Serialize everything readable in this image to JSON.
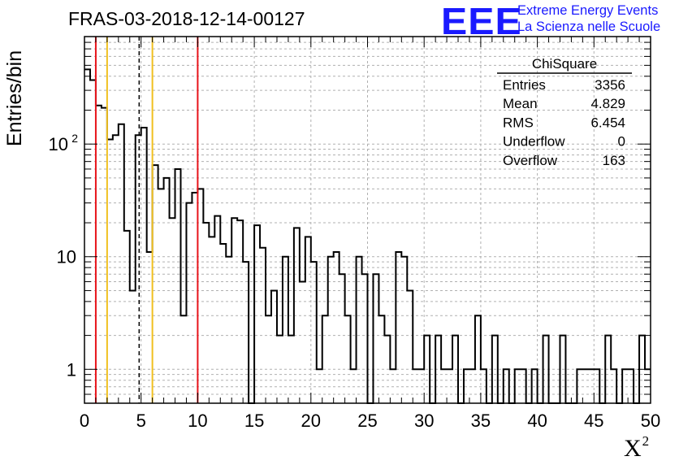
{
  "header": {
    "title": "FRAS-03-2018-12-14-00127",
    "logo_text": "EEE",
    "logo_line1": "Extreme Energy Events",
    "logo_line2": "La Scienza nelle Scuole"
  },
  "stats_box": {
    "name": "ChiSquare",
    "rows": [
      {
        "label": "Entries",
        "value": "3356"
      },
      {
        "label": "Mean",
        "value": "4.829"
      },
      {
        "label": "RMS",
        "value": "6.454"
      },
      {
        "label": "Underflow",
        "value": "0"
      },
      {
        "label": "Overflow",
        "value": "163"
      }
    ]
  },
  "chart_data": {
    "type": "bar",
    "title": "FRAS-03-2018-12-14-00127",
    "xlabel": "X",
    "xlabel_sup": "2",
    "ylabel": "Entries/bin",
    "xlim": [
      0,
      50
    ],
    "ylim": [
      0.5,
      900
    ],
    "yscale": "log",
    "grid": true,
    "legend": "top-right",
    "bin_width": 0.5,
    "x_ticks": [
      0,
      5,
      10,
      15,
      20,
      25,
      30,
      35,
      40,
      45,
      50
    ],
    "x_tick_labels": [
      "0",
      "5",
      "10",
      "15",
      "20",
      "25",
      "30",
      "35",
      "40",
      "45",
      "50"
    ],
    "y_tick_labels": [
      {
        "value": 1,
        "label": "1"
      },
      {
        "value": 10,
        "label": "10"
      },
      {
        "value": 100,
        "label": "10",
        "sup": "2"
      }
    ],
    "values": [
      460,
      370,
      220,
      210,
      110,
      120,
      150,
      17,
      5,
      120,
      140,
      11,
      65,
      40,
      50,
      22,
      60,
      3,
      30,
      37,
      40,
      20,
      15,
      23,
      13,
      10,
      22,
      21,
      9,
      0,
      19,
      12,
      3,
      5,
      2,
      10,
      2,
      18,
      6,
      15,
      9,
      1,
      3,
      10,
      11,
      7,
      3,
      1,
      10,
      7,
      0,
      7,
      3,
      2,
      1,
      11,
      10,
      5,
      1,
      1,
      2,
      0,
      2,
      1,
      1,
      2,
      0,
      1,
      1,
      3,
      1,
      0,
      2,
      0,
      1,
      0,
      1,
      1,
      0,
      1,
      0,
      2,
      0,
      0,
      2,
      0,
      0,
      1,
      1,
      1,
      1,
      0,
      2,
      1,
      0,
      1,
      1,
      0,
      2,
      1
    ],
    "markers": [
      {
        "x": 1,
        "color": "#e8141b",
        "style": "solid"
      },
      {
        "x": 2,
        "color": "#f0c020",
        "style": "solid"
      },
      {
        "x": 4.829,
        "color": "#000000",
        "style": "dashed"
      },
      {
        "x": 6,
        "color": "#f0c020",
        "style": "solid"
      },
      {
        "x": 10,
        "color": "#e8141b",
        "style": "solid"
      }
    ],
    "line_color": "#000000",
    "grid_color": "#b0b0b0"
  }
}
